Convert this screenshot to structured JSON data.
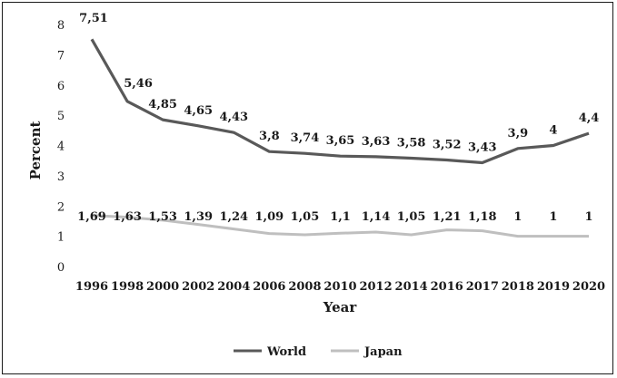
{
  "chart_data": {
    "type": "line",
    "categories": [
      "1996",
      "1998",
      "2000",
      "2002",
      "2004",
      "2006",
      "2008",
      "2010",
      "2012",
      "2014",
      "2016",
      "2017",
      "2018",
      "2019",
      "2020"
    ],
    "series": [
      {
        "name": "World",
        "color": "#595959",
        "values": [
          7.51,
          5.46,
          4.85,
          4.65,
          4.43,
          3.8,
          3.74,
          3.65,
          3.63,
          3.58,
          3.52,
          3.43,
          3.9,
          4,
          4.4
        ],
        "labels": [
          "7,51",
          "5,46",
          "4,85",
          "4,65",
          "4,43",
          "3,8",
          "3,74",
          "3,65",
          "3,63",
          "3,58",
          "3,52",
          "3,43",
          "3,9",
          "4",
          "4,4"
        ]
      },
      {
        "name": "Japan",
        "color": "#bfbfbf",
        "values": [
          1.69,
          1.63,
          1.53,
          1.39,
          1.24,
          1.09,
          1.05,
          1.1,
          1.14,
          1.05,
          1.21,
          1.18,
          1,
          1,
          1
        ],
        "labels": [
          "1,69",
          "1,63",
          "1,53",
          "1,39",
          "1,24",
          "1,09",
          "1,05",
          "1,1",
          "1,14",
          "1,05",
          "1,21",
          "1,18",
          "1",
          "1",
          "1"
        ]
      }
    ],
    "xlabel": "Year",
    "ylabel": "Percent",
    "ylim": [
      0,
      8
    ],
    "yticks": [
      "0",
      "1",
      "2",
      "3",
      "4",
      "5",
      "6",
      "7",
      "8"
    ],
    "grid": false,
    "legend": "bottom"
  }
}
